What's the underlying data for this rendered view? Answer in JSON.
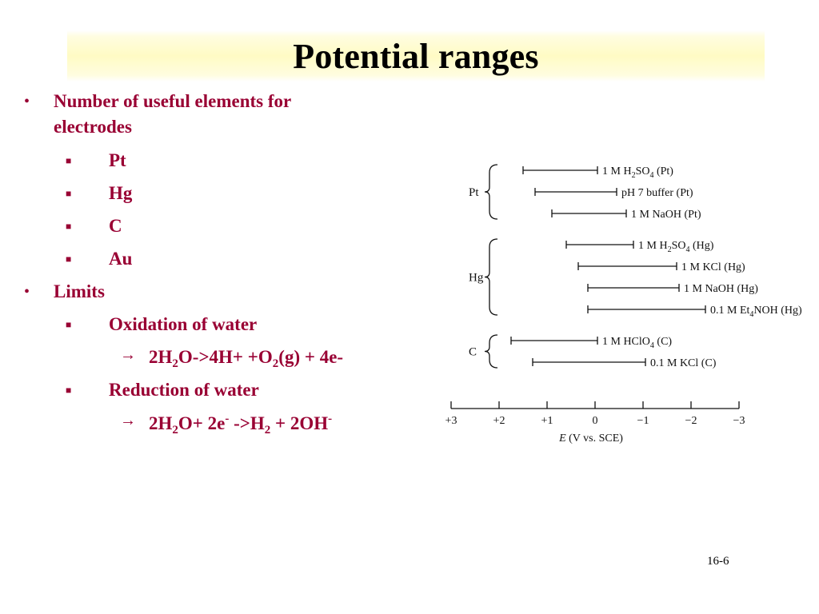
{
  "slide": {
    "title": "Potential ranges",
    "page_number": "16-6",
    "bullets": {
      "b1_line1": "Number of useful elements for",
      "b1_line2": "electrodes",
      "electrodes": [
        "Pt",
        "Hg",
        "C",
        "Au"
      ],
      "limits": "Limits",
      "oxidation": "Oxidation of water",
      "oxidation_eq": {
        "a": "2H",
        "a_sub": "2",
        "b": "O->4H+ +O",
        "b_sub": "2",
        "c": "(g) + 4e-"
      },
      "reduction": "Reduction of water",
      "reduction_eq": {
        "a": "2H",
        "a_sub": "2",
        "b": "O+ 2e",
        "b_sup": "-",
        "c": " ->H",
        "c_sub": "2",
        "d": " + 2OH",
        "d_sup": "-"
      }
    }
  },
  "chart_data": {
    "type": "range",
    "xlabel": "E (V vs. SCE)",
    "xlim": [
      3,
      -3
    ],
    "ticks": [
      3,
      2,
      1,
      0,
      -1,
      -2,
      -3
    ],
    "tick_labels": [
      "+3",
      "+2",
      "+1",
      "0",
      "−1",
      "−2",
      "−3"
    ],
    "groups": [
      {
        "name": "Pt",
        "ranges": [
          {
            "label": "1 M H2SO4 (Pt)",
            "start": 1.5,
            "end": -0.05
          },
          {
            "label": "pH 7 buffer (Pt)",
            "start": 1.25,
            "end": -0.45
          },
          {
            "label": "1 M NaOH (Pt)",
            "start": 0.9,
            "end": -0.65
          }
        ]
      },
      {
        "name": "Hg",
        "ranges": [
          {
            "label": "1 M H2SO4 (Hg)",
            "start": 0.6,
            "end": -0.8
          },
          {
            "label": "1 M KCl (Hg)",
            "start": 0.35,
            "end": -1.7
          },
          {
            "label": "1 M NaOH (Hg)",
            "start": 0.15,
            "end": -1.75
          },
          {
            "label": "0.1 M Et4NOH (Hg)",
            "start": 0.15,
            "end": -2.3
          }
        ]
      },
      {
        "name": "C",
        "ranges": [
          {
            "label": "1 M HClO4 (C)",
            "start": 1.75,
            "end": -0.05
          },
          {
            "label": "0.1 M KCl (C)",
            "start": 1.3,
            "end": -1.05
          }
        ]
      }
    ]
  }
}
